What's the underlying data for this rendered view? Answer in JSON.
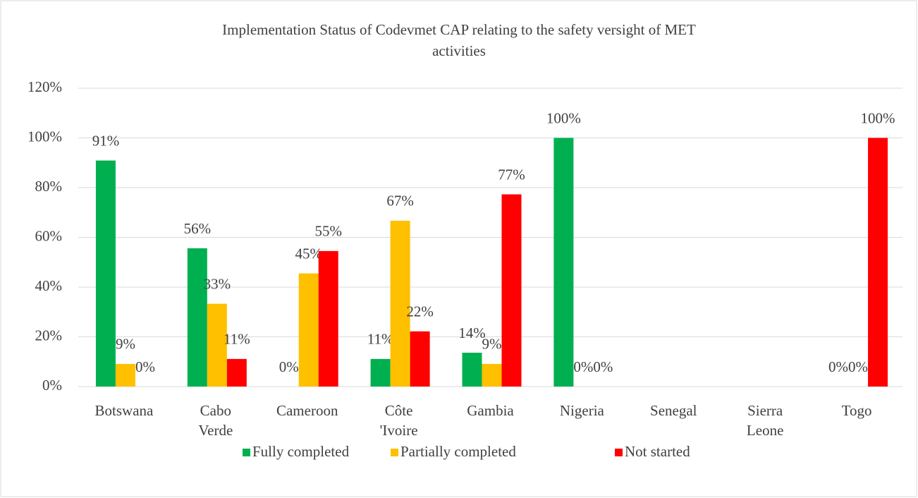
{
  "chart_data": {
    "type": "bar",
    "title": "Implementation Status of Codevmet CAP relating to the safety versight of MET activities",
    "categories": [
      "Botswana",
      "Cabo Verde",
      "Cameroon",
      "Côte 'Ivoire",
      "Gambia",
      "Nigeria",
      "Senegal",
      "Sierra Leone",
      "Togo"
    ],
    "series": [
      {
        "name": "Fully completed",
        "color": "#00b050",
        "values": [
          90.9,
          55.6,
          0,
          11.1,
          13.6,
          100,
          null,
          null,
          0
        ],
        "value_labels": [
          "91%",
          "56%",
          "0%",
          "11%",
          "14%",
          "100%",
          null,
          null,
          "0%"
        ]
      },
      {
        "name": "Partially completed",
        "color": "#ffc000",
        "values": [
          9.1,
          33.3,
          45.5,
          66.7,
          9.1,
          0,
          null,
          null,
          0
        ],
        "value_labels": [
          "9%",
          "33%",
          "45%",
          "67%",
          "9%",
          "0%",
          null,
          null,
          "0%"
        ]
      },
      {
        "name": "Not started",
        "color": "#ff0000",
        "values": [
          0,
          11.1,
          54.5,
          22.2,
          77.3,
          0,
          null,
          null,
          100
        ],
        "value_labels": [
          "0%",
          "11%",
          "55%",
          "22%",
          "77%",
          "0%",
          null,
          null,
          "100%"
        ]
      }
    ],
    "ylim": [
      0,
      120
    ],
    "yticks": [
      {
        "value": 0,
        "label": "0%"
      },
      {
        "value": 20,
        "label": "20%"
      },
      {
        "value": 40,
        "label": "40%"
      },
      {
        "value": 60,
        "label": "60%"
      },
      {
        "value": 80,
        "label": "80%"
      },
      {
        "value": 100,
        "label": "100%"
      },
      {
        "value": 120,
        "label": "120%"
      }
    ],
    "grid": true,
    "legend": "bottom"
  }
}
